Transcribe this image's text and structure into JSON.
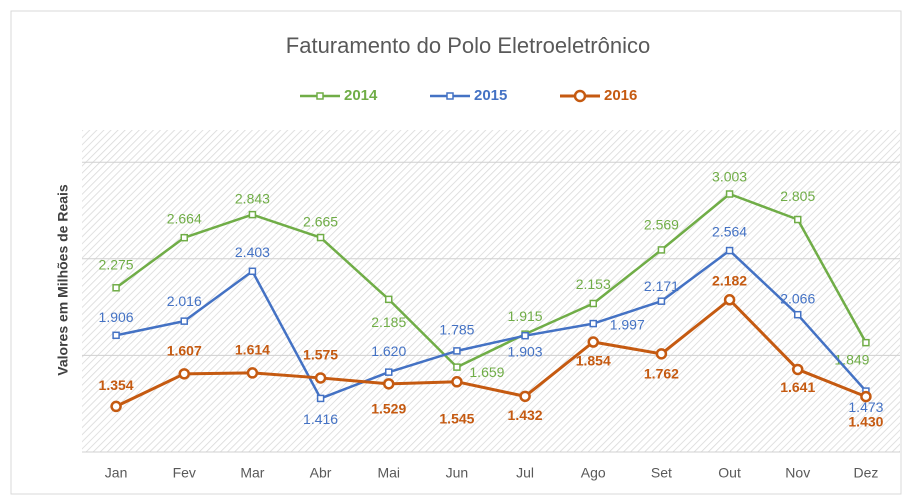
{
  "chart_data": {
    "type": "line",
    "title": "Faturamento do Polo Eletroeletrônico",
    "y_label": "Valores em Milhões de Reais",
    "categories": [
      "Jan",
      "Fev",
      "Mar",
      "Abr",
      "Mai",
      "Jun",
      "Jul",
      "Ago",
      "Set",
      "Out",
      "Nov",
      "Dez"
    ],
    "ylim": [
      1000,
      3500
    ],
    "yticks": [
      1000,
      1750,
      2500,
      3250
    ],
    "grid": true,
    "legend": "top",
    "series": [
      {
        "name": "2014",
        "color": "#70ad47",
        "values": [
          2275,
          2664,
          2843,
          2665,
          2185,
          1659,
          1915,
          2153,
          2569,
          3003,
          2805,
          1849
        ],
        "value_labels": [
          "2.275",
          "2.664",
          "2.843",
          "2.665",
          "2.185",
          "1.659",
          "1.915",
          "2.153",
          "2.569",
          "3.003",
          "2.805",
          "1.849"
        ]
      },
      {
        "name": "2015",
        "color": "#4472c4",
        "values": [
          1906,
          2016,
          2403,
          1416,
          1620,
          1785,
          1903,
          1997,
          2171,
          2564,
          2066,
          1473
        ],
        "value_labels": [
          "1.906",
          "2.016",
          "2.403",
          "1.416",
          "1.620",
          "1.785",
          "1.903",
          "1.997",
          "2.171",
          "2.564",
          "2.066",
          "1.473"
        ]
      },
      {
        "name": "2016",
        "color": "#c55a11",
        "values": [
          1354,
          1607,
          1614,
          1575,
          1529,
          1545,
          1432,
          1854,
          1762,
          2182,
          1641,
          1430
        ],
        "value_labels": [
          "1.354",
          "1.607",
          "1.614",
          "1.575",
          "1.529",
          "1.545",
          "1.432",
          "1.854",
          "1.762",
          "2.182",
          "1.641",
          "1.430"
        ]
      }
    ]
  }
}
